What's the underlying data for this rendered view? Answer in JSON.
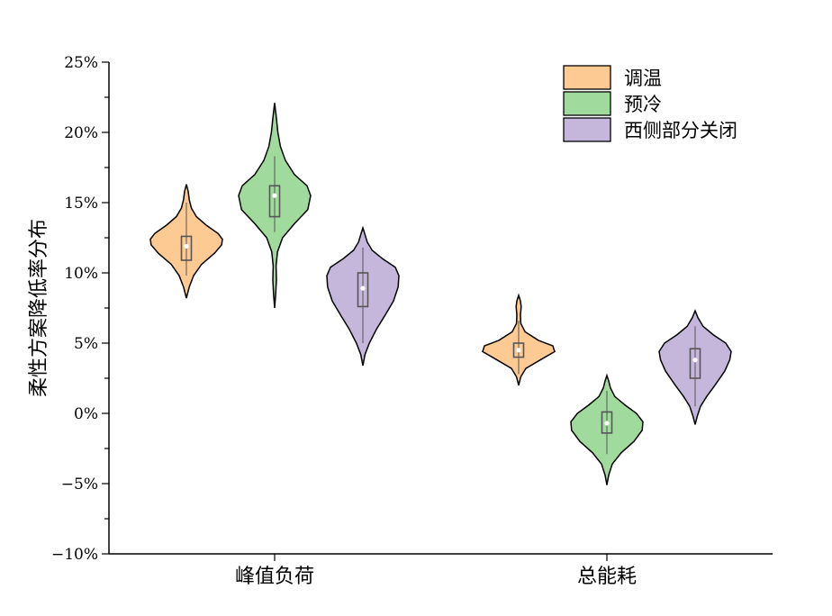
{
  "chart_data": {
    "type": "violin",
    "ylabel": "柔性方案降低率分布",
    "ylim": [
      -0.1,
      0.25
    ],
    "yticks": [
      -0.1,
      -0.05,
      0.0,
      0.05,
      0.1,
      0.15,
      0.2,
      0.25
    ],
    "ytick_labels": [
      "−10%",
      "−5%",
      "0%",
      "5%",
      "10%",
      "15%",
      "20%",
      "25%"
    ],
    "categories": [
      "峰值负荷",
      "总能耗"
    ],
    "legend_position": "top-right",
    "series": [
      {
        "name": "调温",
        "color": "#FDCA93",
        "groups": [
          {
            "min": 0.082,
            "max": 0.163,
            "q1": 0.109,
            "median": 0.119,
            "q3": 0.126,
            "whisker_low": 0.098,
            "whisker_high": 0.15,
            "density": [
              [
                0.082,
                0.0
              ],
              [
                0.09,
                0.08
              ],
              [
                0.098,
                0.2
              ],
              [
                0.106,
                0.42
              ],
              [
                0.114,
                0.78
              ],
              [
                0.12,
                0.98
              ],
              [
                0.124,
                1.0
              ],
              [
                0.128,
                0.88
              ],
              [
                0.134,
                0.55
              ],
              [
                0.14,
                0.28
              ],
              [
                0.146,
                0.14
              ],
              [
                0.152,
                0.08
              ],
              [
                0.158,
                0.05
              ],
              [
                0.163,
                0.0
              ]
            ]
          },
          {
            "min": 0.02,
            "max": 0.084,
            "q1": 0.04,
            "median": 0.045,
            "q3": 0.05,
            "whisker_low": 0.028,
            "whisker_high": 0.066,
            "density": [
              [
                0.02,
                0.0
              ],
              [
                0.026,
                0.06
              ],
              [
                0.032,
                0.2
              ],
              [
                0.038,
                0.6
              ],
              [
                0.044,
                1.0
              ],
              [
                0.048,
                0.95
              ],
              [
                0.052,
                0.55
              ],
              [
                0.058,
                0.18
              ],
              [
                0.064,
                0.06
              ],
              [
                0.07,
                0.05
              ],
              [
                0.076,
                0.07
              ],
              [
                0.08,
                0.05
              ],
              [
                0.084,
                0.0
              ]
            ]
          }
        ]
      },
      {
        "name": "预冷",
        "color": "#A0DB9D",
        "groups": [
          {
            "min": 0.075,
            "max": 0.221,
            "q1": 0.14,
            "median": 0.155,
            "q3": 0.162,
            "whisker_low": 0.129,
            "whisker_high": 0.183,
            "density": [
              [
                0.075,
                0.0
              ],
              [
                0.085,
                0.03
              ],
              [
                0.095,
                0.05
              ],
              [
                0.105,
                0.04
              ],
              [
                0.115,
                0.08
              ],
              [
                0.125,
                0.22
              ],
              [
                0.135,
                0.55
              ],
              [
                0.145,
                0.92
              ],
              [
                0.155,
                1.0
              ],
              [
                0.162,
                0.9
              ],
              [
                0.17,
                0.55
              ],
              [
                0.18,
                0.3
              ],
              [
                0.19,
                0.16
              ],
              [
                0.2,
                0.09
              ],
              [
                0.21,
                0.05
              ],
              [
                0.221,
                0.0
              ]
            ]
          },
          {
            "min": -0.051,
            "max": 0.027,
            "q1": -0.014,
            "median": -0.007,
            "q3": 0.001,
            "whisker_low": -0.029,
            "whisker_high": 0.016,
            "density": [
              [
                -0.051,
                0.0
              ],
              [
                -0.044,
                0.05
              ],
              [
                -0.036,
                0.15
              ],
              [
                -0.028,
                0.4
              ],
              [
                -0.02,
                0.75
              ],
              [
                -0.012,
                0.98
              ],
              [
                -0.006,
                1.0
              ],
              [
                0.0,
                0.82
              ],
              [
                0.006,
                0.5
              ],
              [
                0.012,
                0.22
              ],
              [
                0.018,
                0.1
              ],
              [
                0.023,
                0.05
              ],
              [
                0.027,
                0.0
              ]
            ]
          }
        ]
      },
      {
        "name": "西侧部分关闭",
        "color": "#C5B6DC",
        "groups": [
          {
            "min": 0.034,
            "max": 0.132,
            "q1": 0.076,
            "median": 0.089,
            "q3": 0.1,
            "whisker_low": 0.05,
            "whisker_high": 0.118,
            "density": [
              [
                0.034,
                0.0
              ],
              [
                0.042,
                0.06
              ],
              [
                0.05,
                0.18
              ],
              [
                0.06,
                0.38
              ],
              [
                0.07,
                0.62
              ],
              [
                0.08,
                0.85
              ],
              [
                0.09,
                0.98
              ],
              [
                0.098,
                1.0
              ],
              [
                0.104,
                0.9
              ],
              [
                0.11,
                0.55
              ],
              [
                0.116,
                0.26
              ],
              [
                0.122,
                0.12
              ],
              [
                0.128,
                0.05
              ],
              [
                0.132,
                0.0
              ]
            ]
          },
          {
            "min": -0.008,
            "max": 0.073,
            "q1": 0.025,
            "median": 0.038,
            "q3": 0.046,
            "whisker_low": 0.005,
            "whisker_high": 0.062,
            "density": [
              [
                -0.008,
                0.0
              ],
              [
                -0.002,
                0.06
              ],
              [
                0.005,
                0.15
              ],
              [
                0.012,
                0.32
              ],
              [
                0.02,
                0.55
              ],
              [
                0.03,
                0.82
              ],
              [
                0.038,
                0.96
              ],
              [
                0.044,
                1.0
              ],
              [
                0.05,
                0.85
              ],
              [
                0.056,
                0.5
              ],
              [
                0.062,
                0.22
              ],
              [
                0.068,
                0.08
              ],
              [
                0.073,
                0.0
              ]
            ]
          }
        ]
      }
    ]
  }
}
